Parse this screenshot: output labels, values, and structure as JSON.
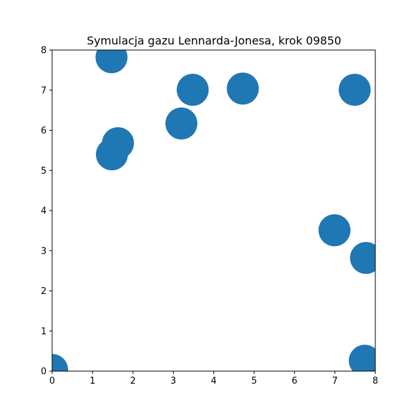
{
  "chart_data": {
    "type": "scatter",
    "title": "Symulacja gazu Lennarda-Jonesa, krok 09850",
    "xlabel": "",
    "ylabel": "",
    "xlim": [
      0,
      8
    ],
    "ylim": [
      0,
      8
    ],
    "xticks": [
      "0",
      "1",
      "2",
      "3",
      "4",
      "5",
      "6",
      "7",
      "8"
    ],
    "yticks": [
      "0",
      "1",
      "2",
      "3",
      "4",
      "5",
      "6",
      "7",
      "8"
    ],
    "grid": false,
    "marker_color": "#1f77b4",
    "marker_radius_data_units": 0.45,
    "points": [
      {
        "x": 0.0,
        "y": 0.03
      },
      {
        "x": 1.47,
        "y": 7.82
      },
      {
        "x": 1.63,
        "y": 5.68
      },
      {
        "x": 1.48,
        "y": 5.4
      },
      {
        "x": 3.2,
        "y": 6.17
      },
      {
        "x": 3.48,
        "y": 7.01
      },
      {
        "x": 4.72,
        "y": 7.04
      },
      {
        "x": 7.49,
        "y": 7.01
      },
      {
        "x": 6.99,
        "y": 3.51
      },
      {
        "x": 7.77,
        "y": 2.82
      },
      {
        "x": 7.74,
        "y": 0.26
      }
    ]
  }
}
